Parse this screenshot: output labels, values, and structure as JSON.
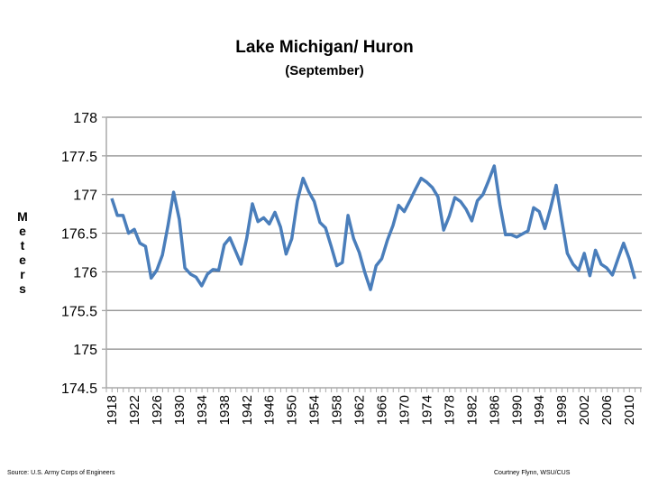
{
  "chart_data": {
    "type": "line",
    "title": "Lake Michigan/ Huron",
    "subtitle": "(September)",
    "ylabel": "Meters",
    "xlabel": "",
    "ylim": [
      174.5,
      178
    ],
    "yticks": [
      174.5,
      175,
      175.5,
      176,
      176.5,
      177,
      177.5,
      178
    ],
    "xtick_labels": [
      "1918",
      "1922",
      "1926",
      "1930",
      "1934",
      "1938",
      "1942",
      "1946",
      "1950",
      "1954",
      "1958",
      "1962",
      "1966",
      "1970",
      "1974",
      "1978",
      "1982",
      "1986",
      "1990",
      "1994",
      "1998",
      "2002",
      "2006",
      "2010"
    ],
    "grid": true,
    "legend": "none",
    "color": "#4a7ebb",
    "x_start": 1918,
    "values": [
      176.95,
      176.73,
      176.73,
      176.5,
      176.55,
      176.37,
      176.33,
      175.92,
      176.02,
      176.22,
      176.6,
      177.03,
      176.68,
      176.05,
      175.97,
      175.93,
      175.82,
      175.97,
      176.03,
      176.02,
      176.35,
      176.44,
      176.27,
      176.1,
      176.44,
      176.88,
      176.65,
      176.7,
      176.62,
      176.77,
      176.58,
      176.23,
      176.43,
      176.92,
      177.21,
      177.04,
      176.91,
      176.64,
      176.57,
      176.33,
      176.08,
      176.12,
      176.73,
      176.43,
      176.25,
      175.99,
      175.77,
      176.08,
      176.17,
      176.41,
      176.6,
      176.86,
      176.78,
      176.92,
      177.07,
      177.21,
      177.16,
      177.09,
      176.97,
      176.54,
      176.72,
      176.96,
      176.91,
      176.81,
      176.66,
      176.92,
      177.0,
      177.18,
      177.37,
      176.87,
      176.48,
      176.48,
      176.45,
      176.49,
      176.53,
      176.83,
      176.78,
      176.56,
      176.82,
      177.12,
      176.67,
      176.24,
      176.1,
      176.02,
      176.24,
      175.95,
      176.28,
      176.1,
      176.05,
      175.96,
      176.17,
      176.37,
      176.17,
      175.91
    ]
  },
  "footer": {
    "source": "Source: U.S. Army Corps of Engineers",
    "credit": "Courtney Flynn, WSU/CUS"
  }
}
